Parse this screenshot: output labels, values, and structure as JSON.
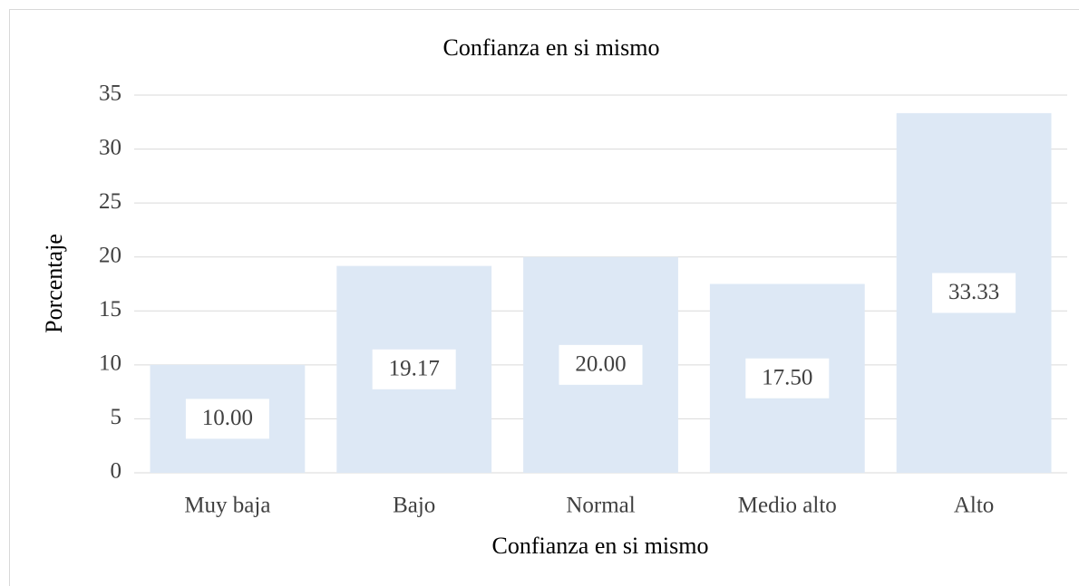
{
  "chart_data": {
    "type": "bar",
    "title": "Confianza en si mismo",
    "x_label": "Confianza en si mismo",
    "y_label": "Porcentaje",
    "categories": [
      "Muy baja",
      "Bajo",
      "Normal",
      "Medio alto",
      "Alto"
    ],
    "values": [
      10.0,
      19.17,
      20.0,
      17.5,
      33.33
    ],
    "value_labels": [
      "10.00",
      "19.17",
      "20.00",
      "17.50",
      "33.33"
    ],
    "color": "#dde8f5",
    "ylim": [
      0,
      35
    ],
    "yticks": [
      0,
      5,
      10,
      15,
      20,
      25,
      30,
      35
    ],
    "grid": true
  }
}
